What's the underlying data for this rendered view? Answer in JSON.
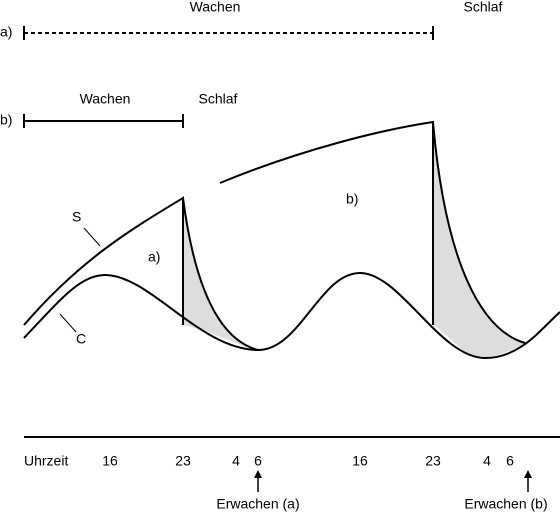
{
  "row_a": {
    "label": "a)",
    "wake": "Wachen",
    "sleep": "Schlaf"
  },
  "row_b": {
    "label": "b)",
    "wake": "Wachen",
    "sleep": "Schlaf"
  },
  "curves": {
    "s": "S",
    "c": "C",
    "region_a": "a)",
    "region_b": "b)"
  },
  "axis": {
    "label": "Uhrzeit",
    "ticks": [
      "16",
      "23",
      "4",
      "6",
      "16",
      "23",
      "4",
      "6"
    ]
  },
  "wake_a": "Erwachen (a)",
  "wake_b": "Erwachen (b)"
}
